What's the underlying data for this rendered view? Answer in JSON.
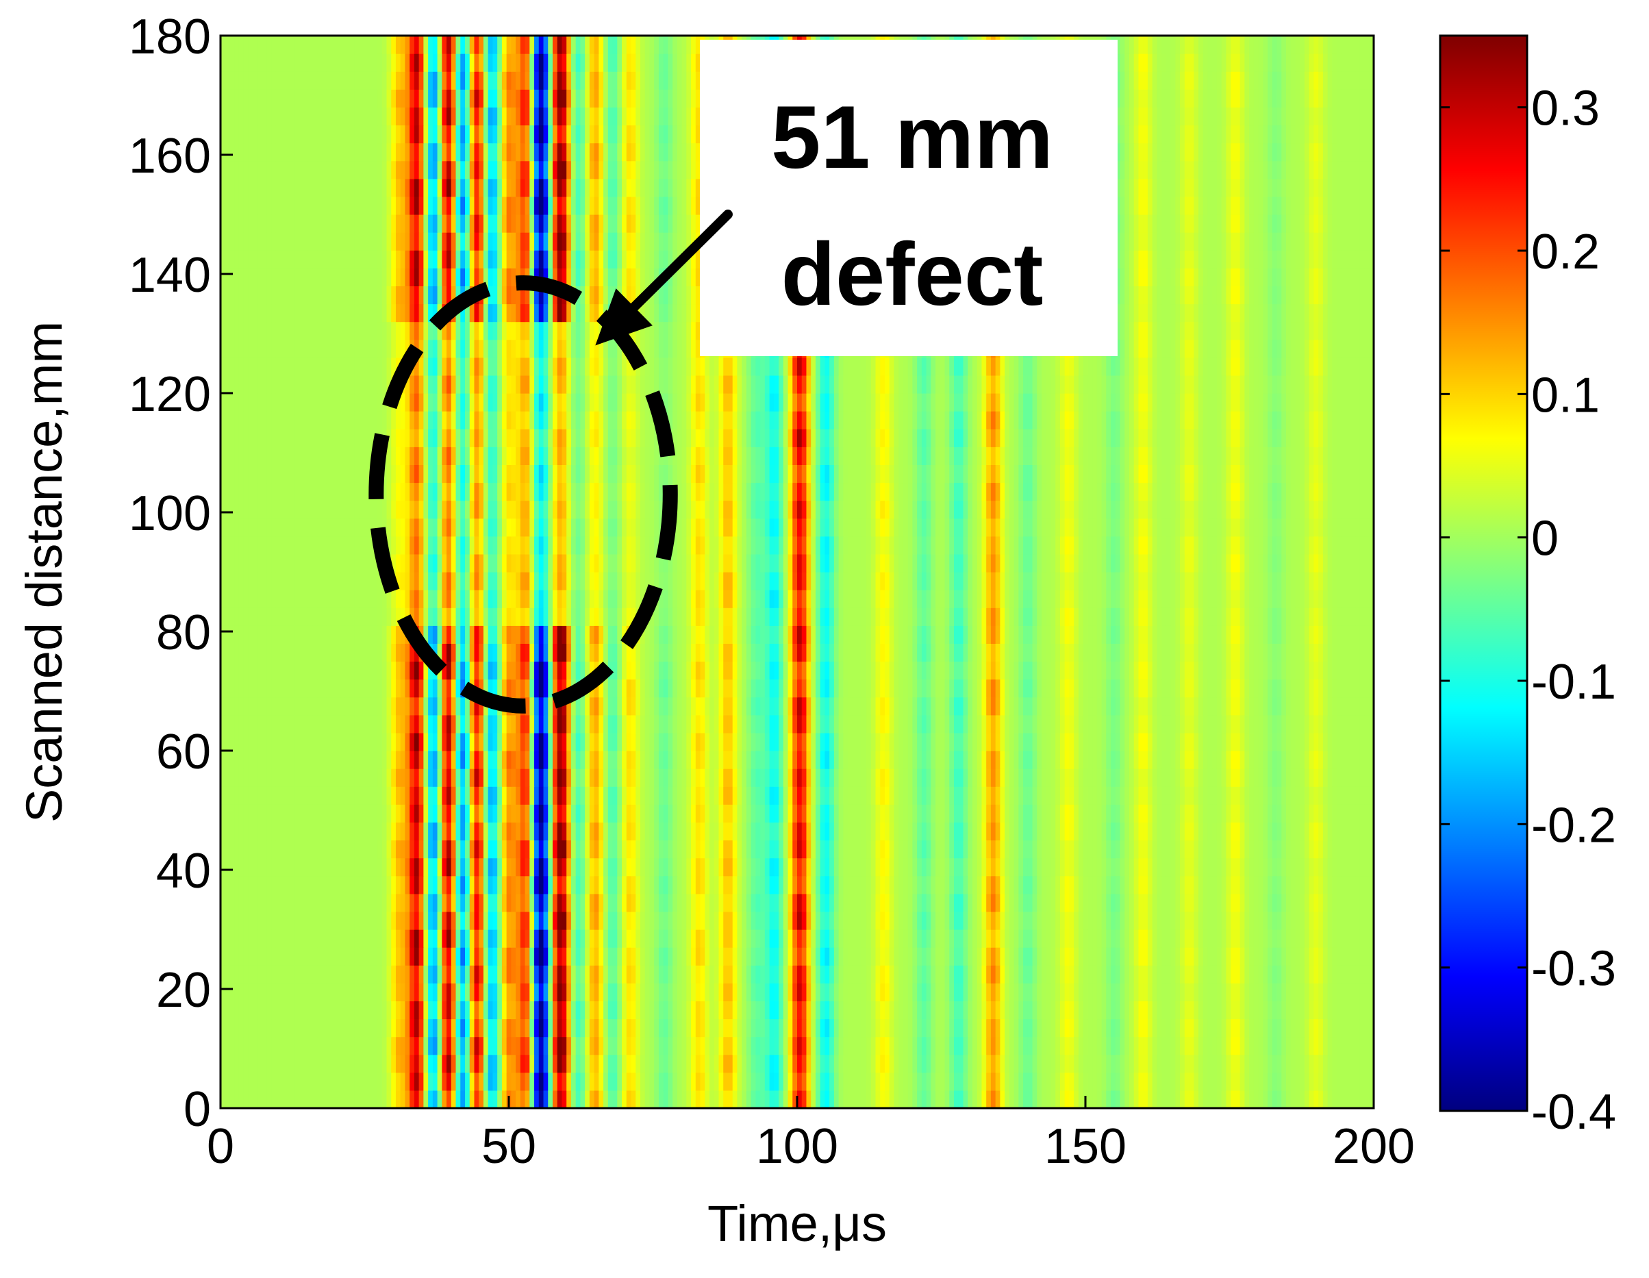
{
  "chart_data": {
    "type": "heatmap",
    "title": "",
    "xlabel": "Time,μs",
    "ylabel": "Scanned distance,mm",
    "xlim": [
      0,
      200
    ],
    "ylim": [
      0,
      180
    ],
    "xticks": [
      "0",
      "50",
      "100",
      "150",
      "200"
    ],
    "yticks": [
      "0",
      "20",
      "40",
      "60",
      "80",
      "100",
      "120",
      "140",
      "160",
      "180"
    ],
    "grid": false,
    "colormap": "jet",
    "colorbar": {
      "range": [
        -0.4,
        0.35
      ],
      "ticks": [
        "0.3",
        "0.2",
        "0.1",
        "0",
        "-0.1",
        "-0.2",
        "-0.3",
        "-0.4"
      ]
    },
    "annotation": {
      "text_line1": "51 mm",
      "text_line2": "defect",
      "defect_region_mm": [
        80,
        131
      ],
      "defect_region_time_us": [
        27,
        78
      ],
      "arrow_from": [
        88,
        150
      ],
      "arrow_to": [
        65,
        128
      ]
    },
    "signal_components": [
      {
        "t": 31,
        "amp": 0.1
      },
      {
        "t": 34,
        "amp": 0.28
      },
      {
        "t": 37,
        "amp": -0.2
      },
      {
        "t": 39.5,
        "amp": 0.3
      },
      {
        "t": 42,
        "amp": -0.22
      },
      {
        "t": 44.5,
        "amp": 0.26
      },
      {
        "t": 47,
        "amp": -0.18
      },
      {
        "t": 50,
        "amp": 0.14
      },
      {
        "t": 53,
        "amp": 0.22
      },
      {
        "t": 55.5,
        "amp": -0.4
      },
      {
        "t": 59,
        "amp": 0.33
      },
      {
        "t": 62,
        "amp": -0.08
      },
      {
        "t": 65,
        "amp": 0.12
      },
      {
        "t": 68,
        "amp": -0.07
      },
      {
        "t": 71,
        "amp": 0.08
      },
      {
        "t": 77,
        "amp": -0.05
      },
      {
        "t": 83,
        "amp": 0.08
      },
      {
        "t": 88,
        "amp": 0.1
      },
      {
        "t": 93,
        "amp": -0.06
      },
      {
        "t": 96,
        "amp": -0.12
      },
      {
        "t": 100.5,
        "amp": 0.25
      },
      {
        "t": 105,
        "amp": -0.12
      },
      {
        "t": 115,
        "amp": 0.06
      },
      {
        "t": 122,
        "amp": -0.06
      },
      {
        "t": 128,
        "amp": -0.08
      },
      {
        "t": 134,
        "amp": 0.13
      },
      {
        "t": 140,
        "amp": -0.05
      },
      {
        "t": 147,
        "amp": 0.05
      },
      {
        "t": 155,
        "amp": -0.04
      },
      {
        "t": 160,
        "amp": 0.05
      },
      {
        "t": 168,
        "amp": 0.04
      },
      {
        "t": 176,
        "amp": 0.05
      },
      {
        "t": 183,
        "amp": -0.03
      },
      {
        "t": 190,
        "amp": 0.04
      }
    ]
  }
}
